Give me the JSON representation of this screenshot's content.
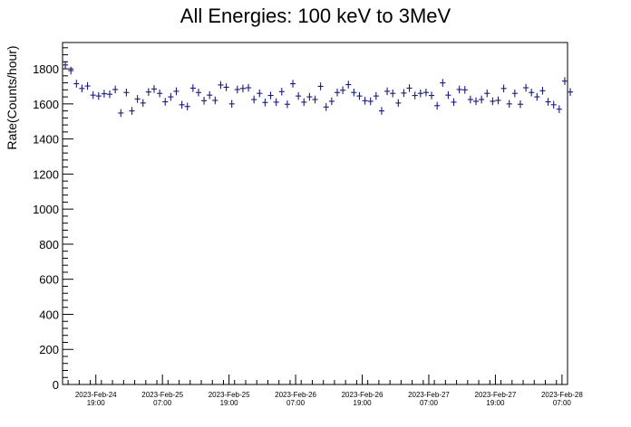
{
  "chart_data": {
    "type": "scatter",
    "title": "All Energies:  100 keV to 3MeV",
    "xlabel": "",
    "ylabel": "Rate(Counts/hour)",
    "ylim": [
      0,
      1950
    ],
    "yticks": [
      0,
      200,
      400,
      600,
      800,
      1000,
      1200,
      1400,
      1600,
      1800
    ],
    "x_tick_labels": [
      [
        "2023-Feb-24",
        "19:00"
      ],
      [
        "2023-Feb-25",
        "07:00"
      ],
      [
        "2023-Feb-25",
        "19:00"
      ],
      [
        "2023-Feb-26",
        "07:00"
      ],
      [
        "2023-Feb-26",
        "19:00"
      ],
      [
        "2023-Feb-27",
        "07:00"
      ],
      [
        "2023-Feb-27",
        "19:00"
      ],
      [
        "2023-Feb-28",
        "07:00"
      ]
    ],
    "grid": false,
    "legend": "none",
    "marker_color": "#1a1a7a",
    "x_unit": "hours",
    "x_range": [
      0,
      91
    ],
    "bin_width_hours": 1,
    "series": [
      {
        "y_error": 22,
        "values": [
          1822,
          1790,
          1715,
          1688,
          1702,
          1650,
          1645,
          1658,
          1655,
          1682,
          1548,
          1665,
          1560,
          1628,
          1605,
          1668,
          1685,
          1660,
          1612,
          1640,
          1672,
          1595,
          1585,
          1690,
          1665,
          1618,
          1650,
          1620,
          1708,
          1695,
          1600,
          1682,
          1688,
          1692,
          1625,
          1660,
          1608,
          1648,
          1610,
          1670,
          1598,
          1715,
          1645,
          1610,
          1640,
          1625,
          1700,
          1582,
          1615,
          1665,
          1678,
          1710,
          1665,
          1645,
          1618,
          1615,
          1645,
          1560,
          1672,
          1660,
          1605,
          1662,
          1690,
          1648,
          1660,
          1665,
          1648,
          1590,
          1720,
          1650,
          1610,
          1682,
          1680,
          1625,
          1615,
          1625,
          1660,
          1615,
          1620,
          1688,
          1600,
          1660,
          1598,
          1692,
          1665,
          1640,
          1675,
          1612,
          1595,
          1570,
          1730,
          1668
        ]
      }
    ]
  }
}
